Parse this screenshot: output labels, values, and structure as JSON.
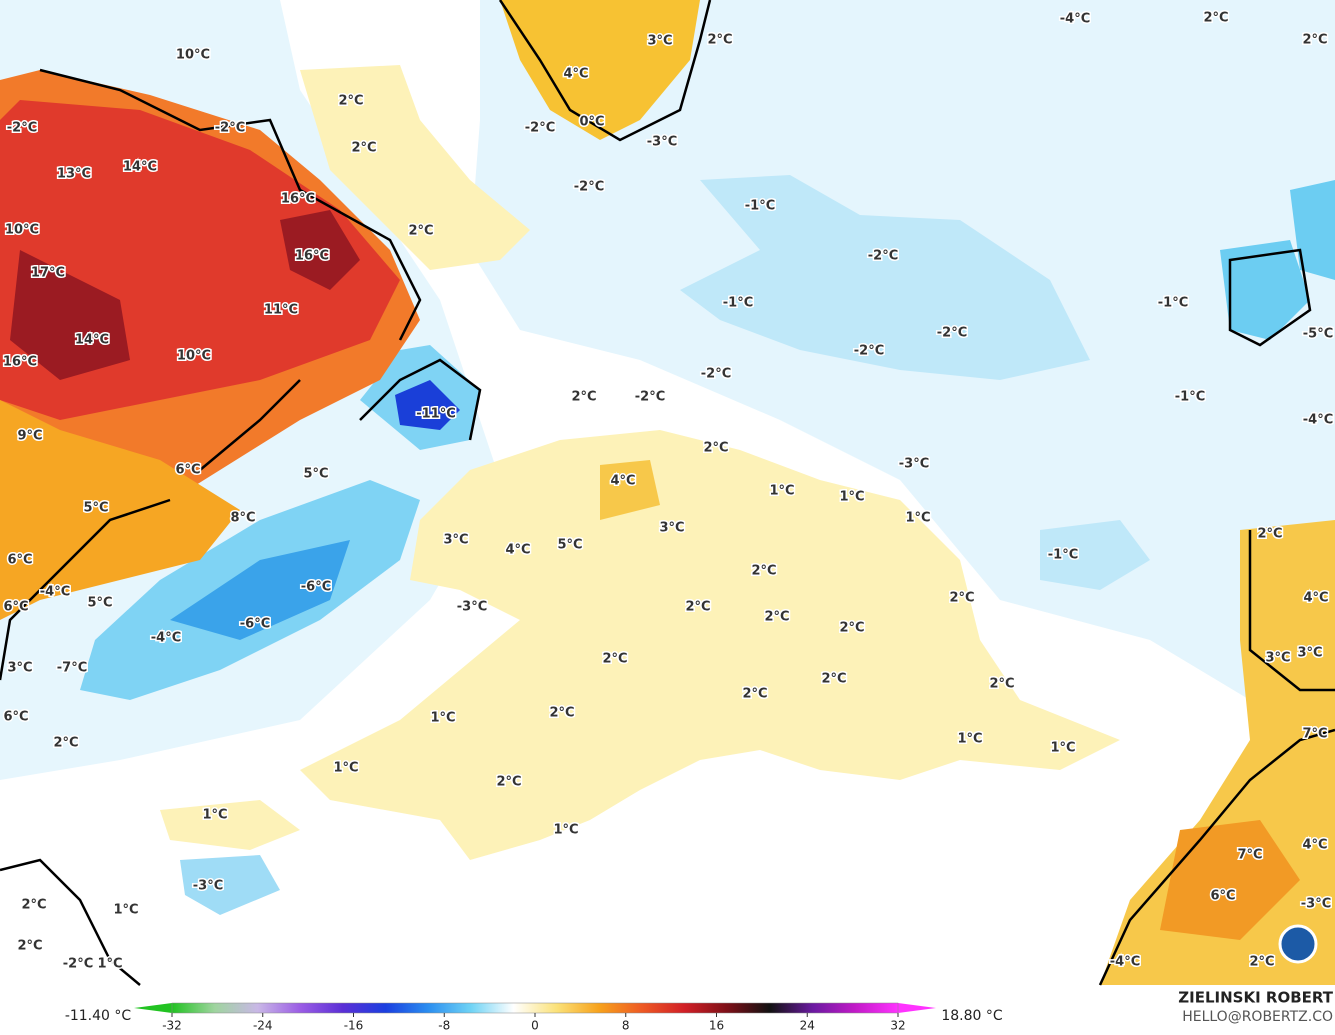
{
  "map": {
    "labels": [
      "10°C",
      "-2°C",
      "-2°C",
      "13°C",
      "14°C",
      "16°C",
      "10°C",
      "17°C",
      "16°C",
      "11°C",
      "14°C",
      "10°C",
      "16°C",
      "9°C",
      "6°C",
      "5°C",
      "8°C",
      "5°C",
      "6°C",
      "-4°C",
      "5°C",
      "6°C",
      "-6°C",
      "-6°C",
      "-4°C",
      "3°C",
      "-7°C",
      "6°C",
      "2°C",
      "-11°C",
      "2°C",
      "2°C",
      "2°C",
      "3°C",
      "2°C",
      "4°C",
      "-2°C",
      "0°C",
      "-3°C",
      "-2°C",
      "-4°C",
      "2°C",
      "2°C",
      "-1°C",
      "-2°C",
      "-1°C",
      "-2°C",
      "-2°C",
      "-1°C",
      "-2°C",
      "-1°C",
      "2°C",
      "-2°C",
      "2°C",
      "-3°C",
      "4°C",
      "1°C",
      "1°C",
      "1°C",
      "3°C",
      "3°C",
      "4°C",
      "5°C",
      "-1°C",
      "2°C",
      "-3°C",
      "2°C",
      "2°C",
      "2°C",
      "2°C",
      "2°C",
      "2°C",
      "2°C",
      "2°C",
      "1°C",
      "2°C",
      "1°C",
      "1°C",
      "1°C",
      "2°C",
      "1°C",
      "1°C",
      "-3°C",
      "2°C",
      "1°C",
      "2°C",
      "-2°C",
      "1°C",
      "7°C",
      "4°C",
      "6°C",
      "-3°C",
      "7°C",
      "3°C",
      "3°C",
      "2°C",
      "-4°C",
      "2°C",
      "4°C",
      "-5°C",
      "-4°C"
    ]
  },
  "colorbar": {
    "min_label": "-11.40 °C",
    "max_label": "18.80 °C",
    "lim": [
      -32,
      32
    ],
    "ticks": [
      -32,
      -24,
      -16,
      -8,
      0,
      8,
      16,
      24,
      32
    ],
    "colors": [
      "#22c322",
      "#9fd49f",
      "#c9b8e6",
      "#9b5de5",
      "#5b2fd6",
      "#1b3fe0",
      "#2b8ef0",
      "#6fd3f5",
      "#ffffff",
      "#fbe27a",
      "#f7a21c",
      "#ee5a24",
      "#d11f26",
      "#7d1018",
      "#111111",
      "#6a1aa0",
      "#c21ac8",
      "#ff33ff"
    ]
  },
  "credit": {
    "name": "ZIELINSKI ROBERT",
    "email": "HELLO@ROBERTZ.CO"
  }
}
